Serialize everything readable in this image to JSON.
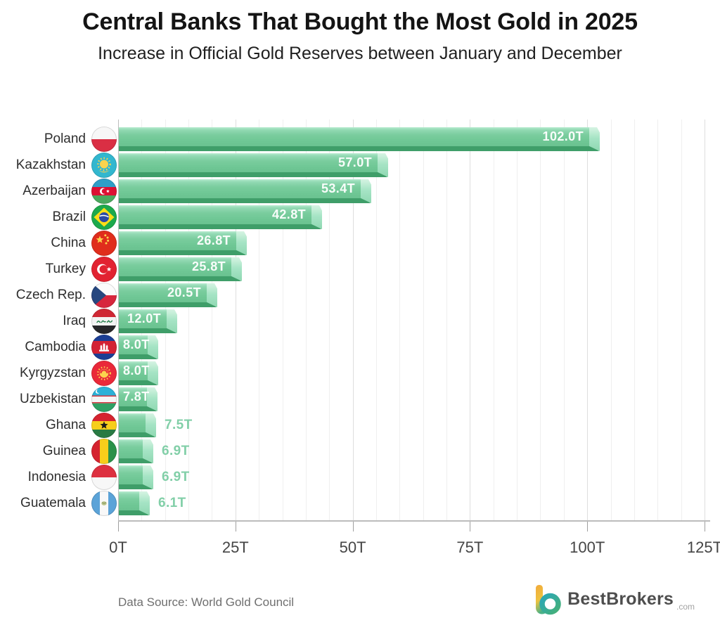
{
  "header": {
    "title": "Central Banks That Bought the Most Gold in 2025",
    "subtitle": "Increase in Official Gold Reserves between January and December"
  },
  "chart_data": {
    "type": "bar",
    "orientation": "horizontal",
    "title": "Central Banks That Bought the Most Gold in 2025",
    "subtitle": "Increase in Official Gold Reserves between January and December",
    "unit": "tonnes",
    "xlim": [
      0,
      125
    ],
    "x_ticks": [
      "0T",
      "25T",
      "50T",
      "75T",
      "100T",
      "125T"
    ],
    "minor_grid_step": 5,
    "major_grid_step": 25,
    "grid": true,
    "categories": [
      "Poland",
      "Kazakhstan",
      "Azerbaijan",
      "Brazil",
      "China",
      "Turkey",
      "Czech Rep.",
      "Iraq",
      "Cambodia",
      "Kyrgyzstan",
      "Uzbekistan",
      "Ghana",
      "Guinea",
      "Indonesia",
      "Guatemala"
    ],
    "values": [
      102.0,
      57.0,
      53.4,
      42.8,
      26.8,
      25.8,
      20.5,
      12.0,
      8.0,
      8.0,
      7.8,
      7.5,
      6.9,
      6.9,
      6.1
    ],
    "value_labels": [
      "102.0T",
      "57.0T",
      "53.4T",
      "42.8T",
      "26.8T",
      "25.8T",
      "20.5T",
      "12.0T",
      "8.0T",
      "8.0T",
      "7.8T",
      "7.5T",
      "6.9T",
      "6.9T",
      "6.1T"
    ],
    "flags": [
      "poland",
      "kazakhstan",
      "azerbaijan",
      "brazil",
      "china",
      "turkey",
      "czech",
      "iraq",
      "cambodia",
      "kyrgyzstan",
      "uzbekistan",
      "ghana",
      "guinea",
      "indonesia",
      "guatemala"
    ]
  },
  "colors": {
    "bar": "#6fc795",
    "bar_shadow": "#3f9e69",
    "bar_cap": "#a6e4c5",
    "value_inside": "#ffffff",
    "value_outside": "#82cfa8",
    "logo_orange": "#f2a93b",
    "logo_teal": "#2ba7b8",
    "logo_green": "#45b077"
  },
  "footer": {
    "source": "Data Source: World Gold Council",
    "brand": "BestBrokers",
    "brand_suffix": ".com"
  }
}
